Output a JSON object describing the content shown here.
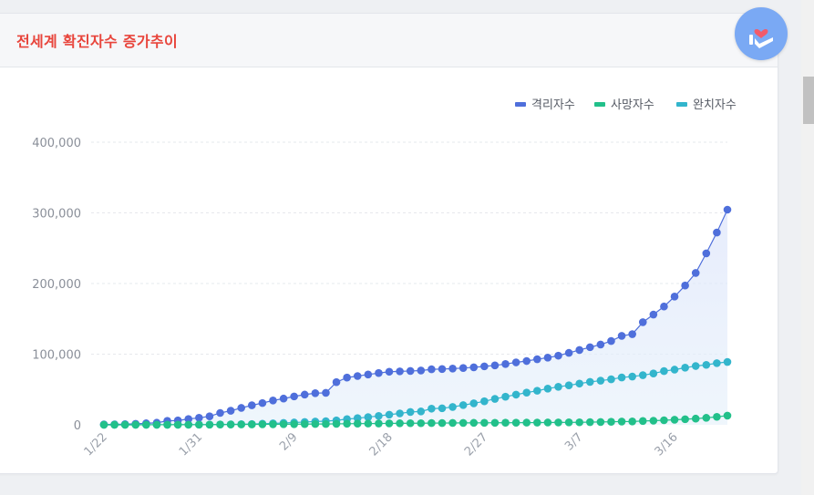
{
  "card": {
    "title": "전세계 확진자수 증가추이"
  },
  "colors": {
    "title": "#e8453c",
    "confirmed": "#4f6fdb",
    "deaths": "#22c08a",
    "recovered": "#33b5cc",
    "grid": "#e6e8ec",
    "fab": "#7aa9f4"
  },
  "fab_icon": "heart-hands-icon",
  "chart_data": {
    "type": "line",
    "title": "",
    "xlabel": "",
    "ylabel": "",
    "ylim": [
      0,
      400000
    ],
    "yticks": [
      0,
      100000,
      200000,
      300000,
      400000
    ],
    "ytick_labels": [
      "0",
      "100,000",
      "200,000",
      "300,000",
      "400,000"
    ],
    "xtick_labels": [
      "1/22",
      "1/31",
      "2/9",
      "2/18",
      "2/27",
      "3/7",
      "3/16"
    ],
    "xtick_index": [
      0,
      9,
      18,
      27,
      36,
      45,
      54
    ],
    "grid": true,
    "legend_position": "top-right",
    "x": [
      "1/22",
      "1/23",
      "1/24",
      "1/25",
      "1/26",
      "1/27",
      "1/28",
      "1/29",
      "1/30",
      "1/31",
      "2/1",
      "2/2",
      "2/3",
      "2/4",
      "2/5",
      "2/6",
      "2/7",
      "2/8",
      "2/9",
      "2/10",
      "2/11",
      "2/12",
      "2/13",
      "2/14",
      "2/15",
      "2/16",
      "2/17",
      "2/18",
      "2/19",
      "2/20",
      "2/21",
      "2/22",
      "2/23",
      "2/24",
      "2/25",
      "2/26",
      "2/27",
      "2/28",
      "2/29",
      "3/1",
      "3/2",
      "3/3",
      "3/4",
      "3/5",
      "3/6",
      "3/7",
      "3/8",
      "3/9",
      "3/10",
      "3/11",
      "3/12",
      "3/13",
      "3/14",
      "3/15",
      "3/16",
      "3/17",
      "3/18",
      "3/19",
      "3/20",
      "3/21"
    ],
    "series": [
      {
        "name": "격리자수",
        "color": "#4f6fdb",
        "values": [
          555,
          654,
          941,
          1434,
          2118,
          2927,
          5578,
          6166,
          8234,
          9927,
          12038,
          16787,
          19881,
          23892,
          27635,
          30794,
          34391,
          37120,
          40150,
          42762,
          44802,
          45221,
          60368,
          66885,
          69030,
          71224,
          73258,
          75136,
          75639,
          76197,
          76819,
          78572,
          78958,
          79561,
          80406,
          81388,
          82746,
          84112,
          86011,
          88369,
          90306,
          92840,
          95120,
          97886,
          101800,
          105836,
          109835,
          113582,
          118582,
          125865,
          128343,
          145193,
          156094,
          167446,
          181527,
          197142,
          214910,
          242708,
          272166,
          304524
        ],
        "fill": true
      },
      {
        "name": "사망자수",
        "color": "#22c08a",
        "values": [
          17,
          18,
          26,
          42,
          56,
          82,
          131,
          133,
          171,
          213,
          259,
          362,
          426,
          492,
          564,
          634,
          719,
          806,
          906,
          1013,
          1113,
          1118,
          1371,
          1523,
          1666,
          1770,
          1868,
          2007,
          2122,
          2247,
          2251,
          2458,
          2469,
          2629,
          2708,
          2770,
          2814,
          2872,
          2941,
          2996,
          3085,
          3160,
          3254,
          3348,
          3460,
          3558,
          3802,
          3988,
          4262,
          4615,
          4720,
          5404,
          5819,
          6440,
          7126,
          7905,
          8733,
          9867,
          11299,
          12973
        ]
      },
      {
        "name": "완치자수",
        "color": "#33b5cc",
        "values": [
          28,
          30,
          36,
          39,
          52,
          61,
          107,
          126,
          143,
          222,
          284,
          472,
          623,
          852,
          1124,
          1487,
          2011,
          2616,
          3244,
          3946,
          4683,
          5150,
          6295,
          8058,
          9395,
          10865,
          12583,
          14352,
          16121,
          18177,
          18890,
          22886,
          23394,
          25227,
          27905,
          30384,
          33277,
          36711,
          39782,
          42716,
          45602,
          48228,
          51170,
          53796,
          55865,
          58359,
          60695,
          62512,
          64404,
          67003,
          68324,
          70251,
          72624,
          76034,
          78088,
          80840,
          83207,
          84854,
          87256,
          89000
        ]
      }
    ]
  }
}
